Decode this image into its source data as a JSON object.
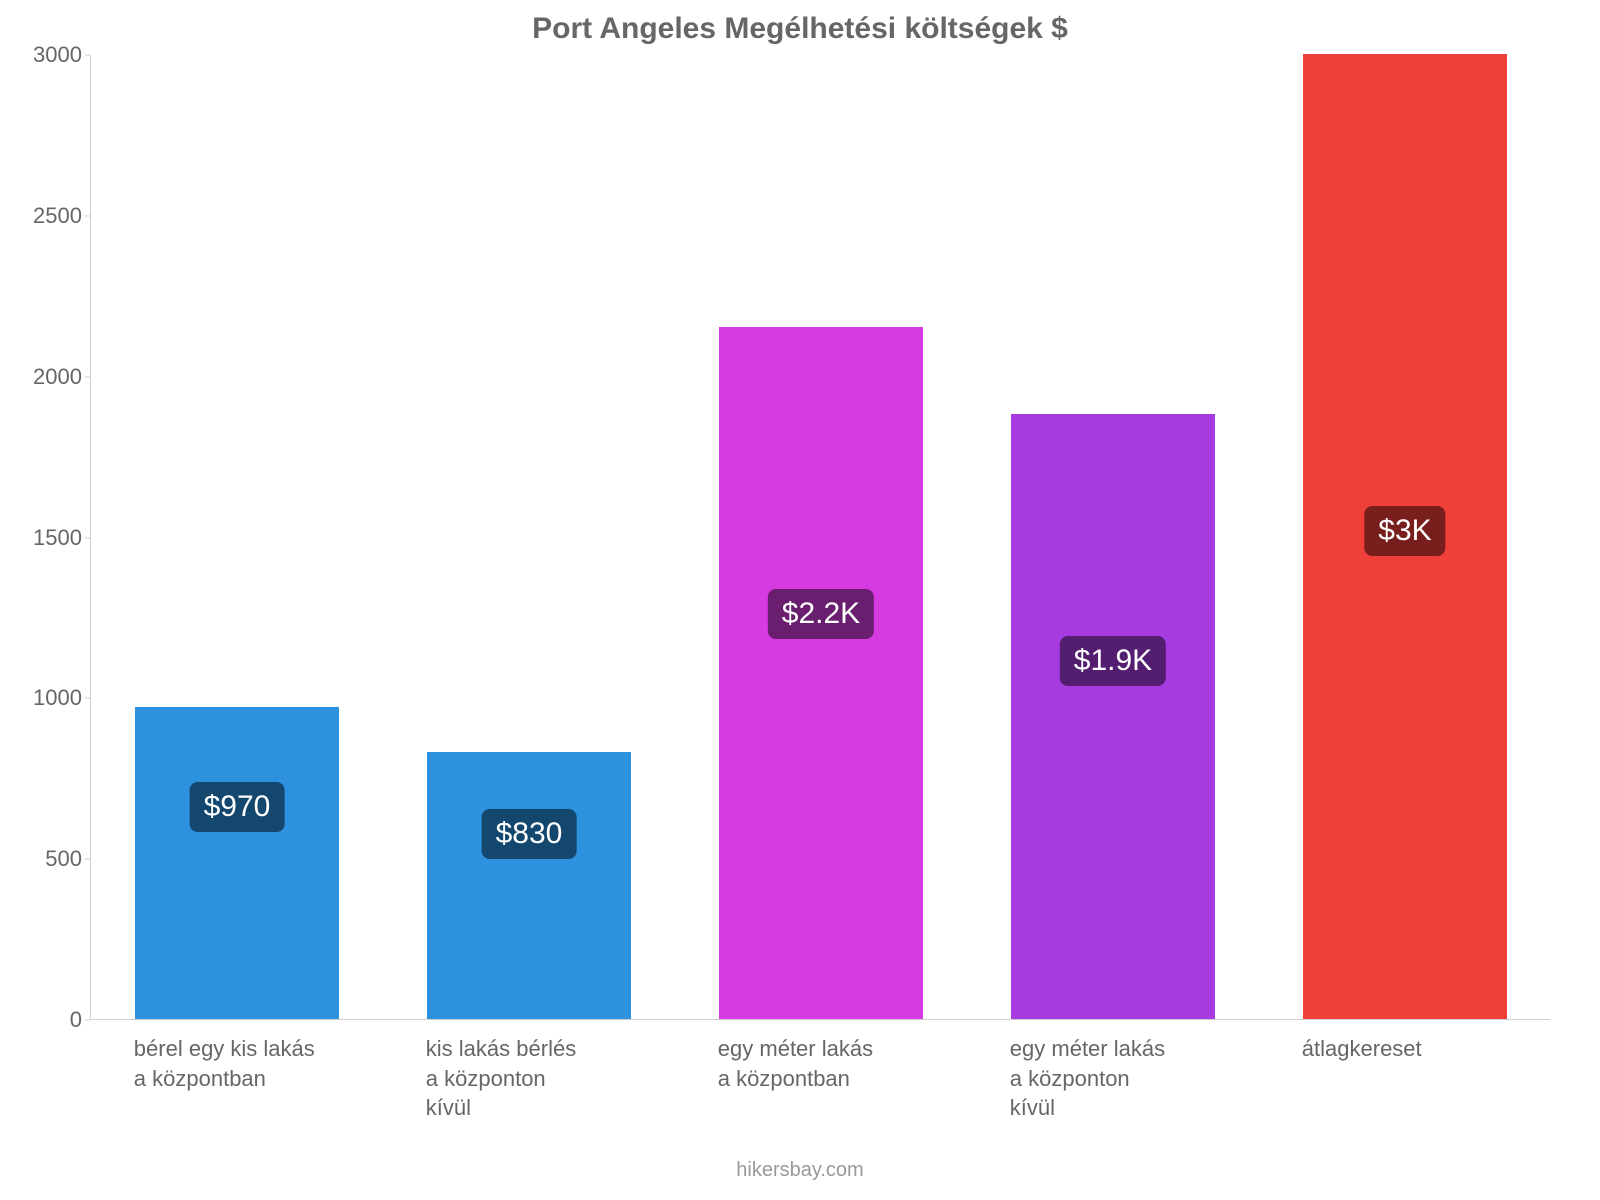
{
  "chart": {
    "type": "bar",
    "title": "Port Angeles Megélhetési költségek $",
    "title_fontsize": 30,
    "title_color": "#666666",
    "background_color": "#ffffff",
    "axis_line_color": "#cfcfcf",
    "ylim": [
      0,
      3000
    ],
    "ytick_step": 500,
    "ytick_labels": [
      "0",
      "500",
      "1000",
      "1500",
      "2000",
      "2500",
      "3000"
    ],
    "ytick_fontsize": 22,
    "ytick_color": "#666666",
    "xlabel_fontsize": 22,
    "xlabel_color": "#666666",
    "bar_width_ratio": 0.7,
    "value_badge_fontsize": 30,
    "value_badge_radius": 8,
    "footer": "hikersbay.com",
    "footer_fontsize": 20,
    "footer_color": "#999999",
    "bars": [
      {
        "label": "bérel egy kis lakás\na központban",
        "value": 970,
        "value_label": "$970",
        "bar_color": "#2d91de",
        "badge_bg": "#13476d",
        "badge_text_color": "#ffffff"
      },
      {
        "label": "kis lakás bérlés\na központon\nkívül",
        "value": 830,
        "value_label": "$830",
        "bar_color": "#2d91de",
        "badge_bg": "#13476d",
        "badge_text_color": "#ffffff"
      },
      {
        "label": "egy méter lakás\na központban",
        "value": 2150,
        "value_label": "$2.2K",
        "bar_color": "#d53be0",
        "badge_bg": "#6a1e70",
        "badge_text_color": "#ffffff"
      },
      {
        "label": "egy méter lakás\na központon\nkívül",
        "value": 1880,
        "value_label": "$1.9K",
        "bar_color": "#a63be0",
        "badge_bg": "#531d70",
        "badge_text_color": "#ffffff"
      },
      {
        "label": "átlagkereset",
        "value": 3000,
        "value_label": "$3K",
        "bar_color": "#ee3f39",
        "badge_bg": "#781e1c",
        "badge_text_color": "#ffffff"
      }
    ]
  }
}
